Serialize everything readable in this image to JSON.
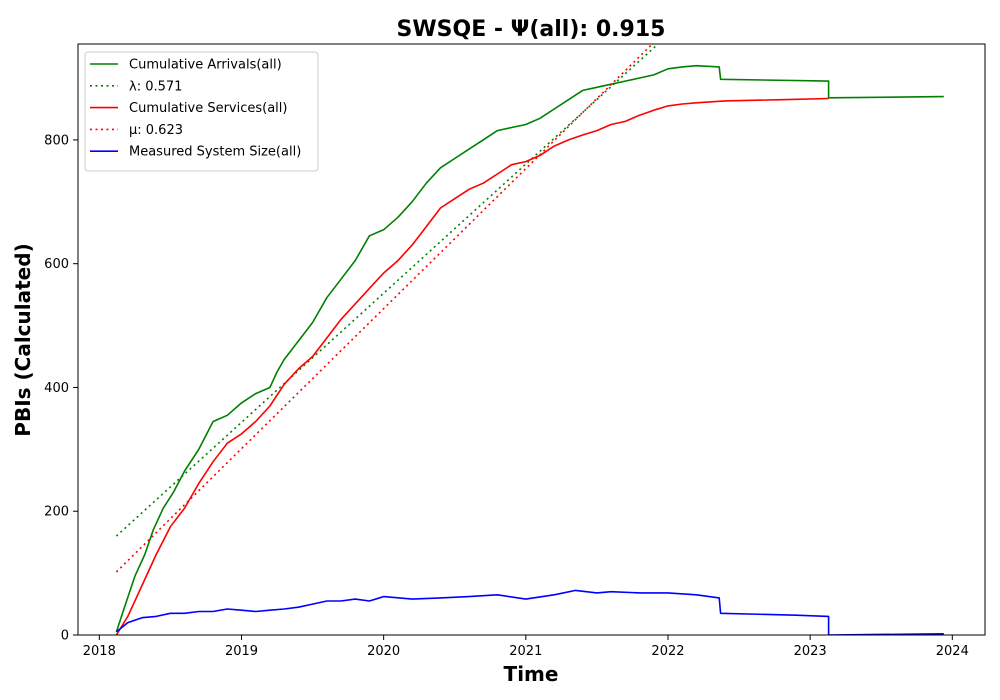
{
  "chart_data": {
    "type": "line",
    "title": "SWSQE -  Ψ(all): 0.915",
    "xlabel": "Time",
    "ylabel": "PBIs (Calculated)",
    "xlim": [
      2017.85,
      2024.23
    ],
    "ylim": [
      0,
      955
    ],
    "x_ticks": [
      2018,
      2019,
      2020,
      2021,
      2022,
      2023,
      2024
    ],
    "y_ticks": [
      0,
      200,
      400,
      600,
      800
    ],
    "grid": false,
    "legend_position": "upper-left",
    "series": [
      {
        "name": "Cumulative Arrivals(all)",
        "color": "#008000",
        "style": "solid",
        "x": [
          2018.12,
          2018.17,
          2018.25,
          2018.32,
          2018.38,
          2018.45,
          2018.52,
          2018.6,
          2018.7,
          2018.8,
          2018.9,
          2019.0,
          2019.1,
          2019.2,
          2019.25,
          2019.3,
          2019.4,
          2019.5,
          2019.6,
          2019.7,
          2019.8,
          2019.9,
          2020.0,
          2020.1,
          2020.2,
          2020.3,
          2020.4,
          2020.5,
          2020.6,
          2020.7,
          2020.8,
          2020.9,
          2021.0,
          2021.1,
          2021.2,
          2021.3,
          2021.4,
          2021.5,
          2021.6,
          2021.7,
          2021.8,
          2021.9,
          2022.0,
          2022.1,
          2022.2,
          2022.36,
          2022.37,
          2023.13,
          2023.13,
          2023.94
        ],
        "y": [
          5,
          40,
          95,
          130,
          170,
          205,
          230,
          265,
          300,
          345,
          355,
          375,
          390,
          400,
          425,
          445,
          475,
          505,
          545,
          575,
          605,
          645,
          655,
          675,
          700,
          730,
          755,
          770,
          785,
          800,
          815,
          820,
          825,
          835,
          850,
          865,
          880,
          885,
          890,
          895,
          900,
          905,
          915,
          918,
          920,
          918,
          898,
          895,
          868,
          870
        ]
      },
      {
        "name": "λ: 0.571",
        "color": "#008000",
        "style": "dotted",
        "x": [
          2018.12,
          2021.93
        ],
        "y": [
          160,
          955
        ]
      },
      {
        "name": "Cumulative Services(all)",
        "color": "#ff0000",
        "style": "solid",
        "x": [
          2018.12,
          2018.2,
          2018.3,
          2018.4,
          2018.5,
          2018.6,
          2018.7,
          2018.8,
          2018.9,
          2019.0,
          2019.1,
          2019.2,
          2019.3,
          2019.4,
          2019.5,
          2019.6,
          2019.7,
          2019.8,
          2019.9,
          2020.0,
          2020.1,
          2020.2,
          2020.3,
          2020.4,
          2020.5,
          2020.6,
          2020.7,
          2020.8,
          2020.9,
          2021.0,
          2021.1,
          2021.2,
          2021.3,
          2021.4,
          2021.5,
          2021.6,
          2021.7,
          2021.8,
          2021.9,
          2022.0,
          2022.1,
          2022.2,
          2022.4,
          2022.8,
          2023.13
        ],
        "y": [
          0,
          30,
          80,
          130,
          175,
          205,
          245,
          280,
          310,
          325,
          345,
          370,
          405,
          430,
          450,
          480,
          510,
          535,
          560,
          585,
          605,
          630,
          660,
          690,
          705,
          720,
          730,
          745,
          760,
          765,
          775,
          790,
          800,
          808,
          815,
          825,
          830,
          840,
          848,
          855,
          858,
          860,
          863,
          865,
          867
        ]
      },
      {
        "name": "μ: 0.623",
        "color": "#ff0000",
        "style": "dotted",
        "x": [
          2018.12,
          2021.89
        ],
        "y": [
          102,
          955
        ]
      },
      {
        "name": "Measured System Size(all)",
        "color": "#0000ff",
        "style": "solid",
        "x": [
          2018.12,
          2018.2,
          2018.3,
          2018.4,
          2018.5,
          2018.6,
          2018.7,
          2018.8,
          2018.9,
          2019.0,
          2019.1,
          2019.2,
          2019.3,
          2019.4,
          2019.5,
          2019.6,
          2019.7,
          2019.8,
          2019.9,
          2020.0,
          2020.2,
          2020.4,
          2020.6,
          2020.8,
          2021.0,
          2021.2,
          2021.35,
          2021.5,
          2021.6,
          2021.8,
          2022.0,
          2022.2,
          2022.36,
          2022.37,
          2022.9,
          2023.13,
          2023.13,
          2023.94
        ],
        "y": [
          5,
          20,
          28,
          30,
          35,
          35,
          38,
          38,
          42,
          40,
          38,
          40,
          42,
          45,
          50,
          55,
          55,
          58,
          55,
          62,
          58,
          60,
          62,
          65,
          58,
          65,
          72,
          68,
          70,
          68,
          68,
          65,
          60,
          35,
          32,
          30,
          0,
          2
        ]
      }
    ]
  }
}
